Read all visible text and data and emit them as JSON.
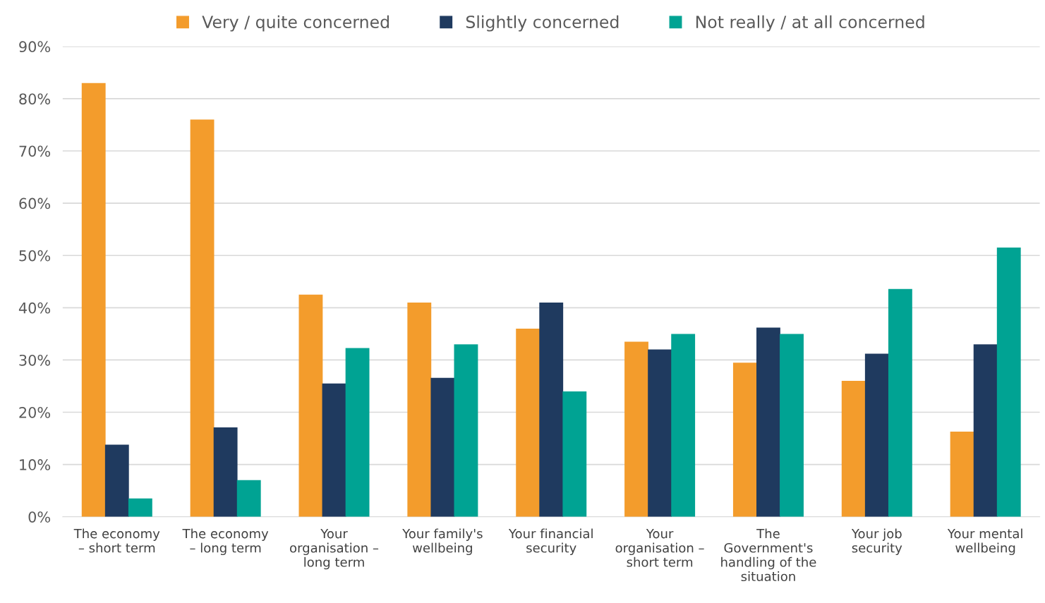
{
  "chart_data": {
    "type": "bar",
    "categories": [
      "The economy\n– short term",
      "The economy\n– long term",
      "Your\norganisation –\nlong term",
      "Your family's\nwellbeing",
      "Your financial\nsecurity",
      "Your\norganisation –\nshort term",
      "The\nGovernment's\nhandling of the\nsituation",
      "Your job\nsecurity",
      "Your mental\nwellbeing"
    ],
    "series": [
      {
        "name": "Very / quite concerned",
        "color": "#f39c2c",
        "values": [
          83,
          76,
          42.5,
          41,
          36,
          33.5,
          29.5,
          26,
          16.3
        ]
      },
      {
        "name": "Slightly concerned",
        "color": "#1f3a5f",
        "values": [
          13.8,
          17.1,
          25.5,
          26.6,
          41,
          32,
          36.2,
          31.2,
          33
        ]
      },
      {
        "name": "Not really / at all concerned",
        "color": "#00a393",
        "values": [
          3.5,
          7,
          32.3,
          33,
          24,
          35,
          35,
          43.6,
          51.5
        ]
      }
    ],
    "ylim": [
      0,
      90
    ],
    "yticks": [
      {
        "value": 0,
        "label": "0%"
      },
      {
        "value": 10,
        "label": "10%"
      },
      {
        "value": 20,
        "label": "20%"
      },
      {
        "value": 30,
        "label": "30%"
      },
      {
        "value": 40,
        "label": "40%"
      },
      {
        "value": 50,
        "label": "50%"
      },
      {
        "value": 60,
        "label": "60%"
      },
      {
        "value": 70,
        "label": "70%"
      },
      {
        "value": 80,
        "label": "80%"
      },
      {
        "value": 90,
        "label": "90%"
      }
    ],
    "grid": "y",
    "legend": "top"
  }
}
